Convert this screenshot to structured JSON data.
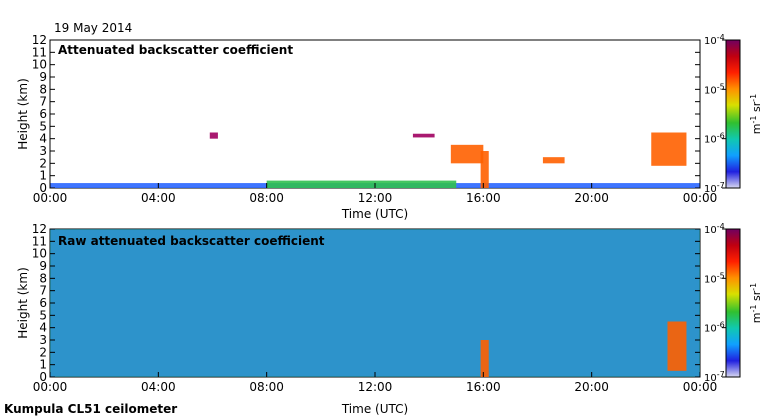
{
  "header": {
    "date": "19 May 2014"
  },
  "footer": {
    "instrument": "Kumpula CL51 ceilometer"
  },
  "colors": {
    "axis": "#000000",
    "background": "#ffffff"
  },
  "colorbar": {
    "unit_base": "m",
    "unit_exp1": "-1",
    "unit_mid": " sr",
    "unit_exp2": "-1",
    "ticks": [
      {
        "base": "10",
        "exp": "-4",
        "value": 0.0001
      },
      {
        "base": "10",
        "exp": "-5",
        "value": 1e-05
      },
      {
        "base": "10",
        "exp": "-6",
        "value": 1e-06
      },
      {
        "base": "10",
        "exp": "-7",
        "value": 1e-07
      }
    ],
    "stops": [
      "#d8d8f0",
      "#2020e0",
      "#10a0ff",
      "#10c8b0",
      "#30c030",
      "#d8e000",
      "#ff9000",
      "#ff2000",
      "#c00010",
      "#700060"
    ]
  },
  "chart_data": [
    {
      "type": "heatmap",
      "title": "Attenuated backscatter coefficient",
      "xlabel": "Time (UTC)",
      "ylabel": "Height (km)",
      "xlim": [
        0,
        24
      ],
      "ylim": [
        0,
        12
      ],
      "xticks": [
        "00:00",
        "04:00",
        "08:00",
        "12:00",
        "16:00",
        "20:00",
        "00:00"
      ],
      "yticks": [
        "0",
        "1",
        "2",
        "3",
        "4",
        "5",
        "6",
        "7",
        "8",
        "9",
        "10",
        "11",
        "12"
      ],
      "clim": [
        1e-07,
        0.0001
      ],
      "features": [
        {
          "name": "boundary layer",
          "t0": 0,
          "t1": 24,
          "h0": 0,
          "h1": 0.4,
          "level": "mid"
        },
        {
          "name": "near-surface layer",
          "t0": 8,
          "t1": 15,
          "h0": 0,
          "h1": 0.6,
          "level": "mid-high"
        },
        {
          "name": "elevated layer",
          "t0": 5.9,
          "t1": 6.2,
          "h0": 4.0,
          "h1": 4.5,
          "level": "very high"
        },
        {
          "name": "elevated layer",
          "t0": 13.4,
          "t1": 14.2,
          "h0": 4.1,
          "h1": 4.4,
          "level": "very high"
        },
        {
          "name": "cloud",
          "t0": 14.8,
          "t1": 16.0,
          "h0": 2.0,
          "h1": 3.5,
          "level": "high"
        },
        {
          "name": "precipitation column",
          "t0": 15.9,
          "t1": 16.2,
          "h0": 0,
          "h1": 3.0,
          "level": "high"
        },
        {
          "name": "cloud",
          "t0": 18.2,
          "t1": 19.0,
          "h0": 2.0,
          "h1": 2.5,
          "level": "high"
        },
        {
          "name": "cloud",
          "t0": 22.2,
          "t1": 23.5,
          "h0": 1.8,
          "h1": 4.5,
          "level": "high"
        }
      ]
    },
    {
      "type": "heatmap",
      "title": "Raw attenuated backscatter coefficient",
      "xlabel": "Time (UTC)",
      "ylabel": "Height (km)",
      "xlim": [
        0,
        24
      ],
      "ylim": [
        0,
        12
      ],
      "xticks": [
        "00:00",
        "04:00",
        "08:00",
        "12:00",
        "16:00",
        "20:00",
        "00:00"
      ],
      "yticks": [
        "0",
        "1",
        "2",
        "3",
        "4",
        "5",
        "6",
        "7",
        "8",
        "9",
        "10",
        "11",
        "12"
      ],
      "clim": [
        1e-07,
        0.0001
      ],
      "features": [
        {
          "name": "noise background",
          "t0": 0,
          "t1": 24,
          "h0": 0,
          "h1": 12,
          "level": "mixed"
        },
        {
          "name": "precipitation column",
          "t0": 15.9,
          "t1": 16.2,
          "h0": 0,
          "h1": 3.0,
          "level": "high"
        },
        {
          "name": "cloud",
          "t0": 22.8,
          "t1": 23.5,
          "h0": 0.5,
          "h1": 4.5,
          "level": "high"
        }
      ]
    }
  ]
}
